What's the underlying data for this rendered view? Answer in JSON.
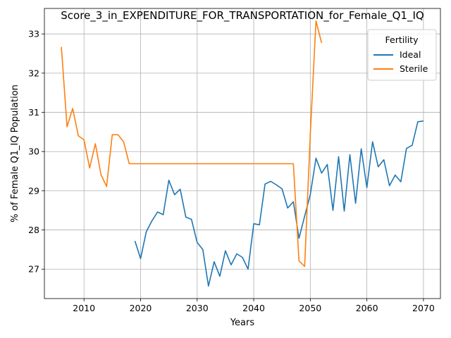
{
  "chart_data": {
    "type": "line",
    "title": "Score_3_in_EXPENDITURE_FOR_TRANSPORTATION_for_Female_Q1_IQ",
    "xlabel": "Years",
    "ylabel": "% of Female Q1_IQ Population",
    "xlim": [
      2003,
      2073
    ],
    "ylim": [
      26.25,
      33.65
    ],
    "xticks": [
      2010,
      2020,
      2030,
      2040,
      2050,
      2060,
      2070
    ],
    "yticks": [
      27,
      28,
      29,
      30,
      31,
      32,
      33
    ],
    "grid": true,
    "legend": {
      "title": "Fertility",
      "placement": "top-right"
    },
    "series": [
      {
        "name": "Ideal",
        "color": "#1f77b4",
        "points": [
          [
            2019,
            27.72
          ],
          [
            2020,
            27.27
          ],
          [
            2021,
            27.95
          ],
          [
            2022,
            28.23
          ],
          [
            2023,
            28.46
          ],
          [
            2024,
            28.39
          ],
          [
            2025,
            29.27
          ],
          [
            2026,
            28.9
          ],
          [
            2027,
            29.04
          ],
          [
            2028,
            28.33
          ],
          [
            2029,
            28.27
          ],
          [
            2030,
            27.68
          ],
          [
            2031,
            27.5
          ],
          [
            2032,
            26.57
          ],
          [
            2033,
            27.19
          ],
          [
            2034,
            26.82
          ],
          [
            2035,
            27.47
          ],
          [
            2036,
            27.11
          ],
          [
            2037,
            27.39
          ],
          [
            2038,
            27.3
          ],
          [
            2039,
            27.0
          ],
          [
            2040,
            28.16
          ],
          [
            2041,
            28.13
          ],
          [
            2042,
            29.17
          ],
          [
            2043,
            29.24
          ],
          [
            2044,
            29.15
          ],
          [
            2045,
            29.05
          ],
          [
            2046,
            28.56
          ],
          [
            2047,
            28.72
          ],
          [
            2048,
            27.79
          ],
          [
            2049,
            28.35
          ],
          [
            2050,
            28.9
          ],
          [
            2051,
            29.83
          ],
          [
            2052,
            29.45
          ],
          [
            2053,
            29.67
          ],
          [
            2054,
            28.5
          ],
          [
            2055,
            29.87
          ],
          [
            2056,
            28.48
          ],
          [
            2057,
            29.92
          ],
          [
            2058,
            28.68
          ],
          [
            2059,
            30.07
          ],
          [
            2060,
            29.08
          ],
          [
            2061,
            30.25
          ],
          [
            2062,
            29.61
          ],
          [
            2063,
            29.79
          ],
          [
            2064,
            29.13
          ],
          [
            2065,
            29.4
          ],
          [
            2066,
            29.23
          ],
          [
            2067,
            30.08
          ],
          [
            2068,
            30.16
          ],
          [
            2069,
            30.76
          ],
          [
            2070,
            30.78
          ]
        ]
      },
      {
        "name": "Sterile",
        "color": "#ff7f0e",
        "points": [
          [
            2006,
            32.67
          ],
          [
            2007,
            30.63
          ],
          [
            2008,
            31.1
          ],
          [
            2009,
            30.4
          ],
          [
            2010,
            30.3
          ],
          [
            2011,
            29.58
          ],
          [
            2012,
            30.2
          ],
          [
            2013,
            29.41
          ],
          [
            2014,
            29.11
          ],
          [
            2015,
            30.43
          ],
          [
            2016,
            30.43
          ],
          [
            2017,
            30.25
          ],
          [
            2018,
            29.69
          ],
          [
            2019,
            29.69
          ],
          [
            2020,
            29.69
          ],
          [
            2025,
            29.69
          ],
          [
            2030,
            29.69
          ],
          [
            2035,
            29.69
          ],
          [
            2040,
            29.69
          ],
          [
            2045,
            29.69
          ],
          [
            2047,
            29.69
          ],
          [
            2048,
            27.21
          ],
          [
            2049,
            27.07
          ],
          [
            2050,
            30.43
          ],
          [
            2051,
            33.33
          ],
          [
            2052,
            32.77
          ]
        ]
      }
    ]
  }
}
